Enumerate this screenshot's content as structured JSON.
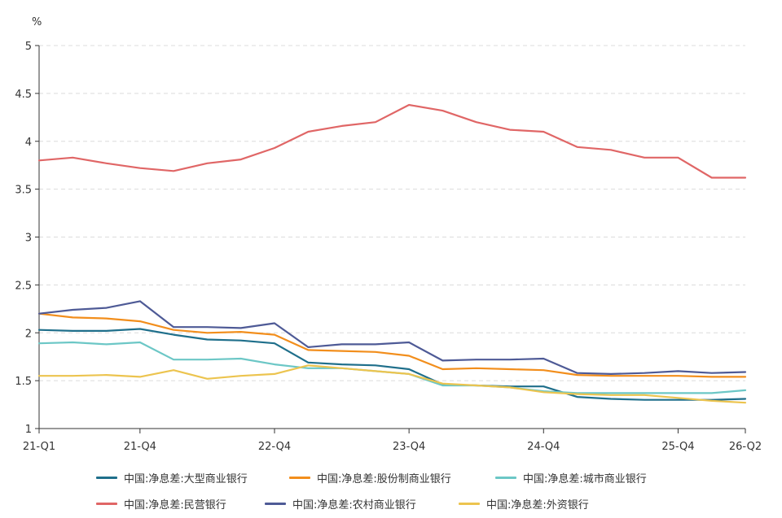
{
  "chart_data": {
    "type": "line",
    "unit": "%",
    "ylim": [
      1,
      5
    ],
    "y_ticks": [
      "1",
      "1.5",
      "2",
      "2.5",
      "3",
      "3.5",
      "4",
      "4.5",
      "5"
    ],
    "x_tick_labels": [
      "21-Q1",
      "21-Q4",
      "22-Q4",
      "23-Q4",
      "24-Q4",
      "25-Q4",
      "26-Q2"
    ],
    "grid": true,
    "legend_position": "bottom",
    "x": [
      "21-Q1",
      "21-Q2",
      "21-Q3",
      "21-Q4",
      "22-Q1",
      "22-Q2",
      "22-Q3",
      "22-Q4",
      "23-Q1",
      "23-Q2",
      "23-Q3",
      "23-Q4",
      "24-Q1",
      "24-Q2",
      "24-Q3",
      "24-Q4",
      "25-Q1",
      "25-Q2",
      "25-Q3",
      "25-Q4",
      "26-Q1",
      "26-Q2"
    ],
    "series": [
      {
        "name": "中国:净息差:大型商业银行",
        "color": "#1f6f8b",
        "values": [
          2.03,
          2.02,
          2.02,
          2.04,
          1.98,
          1.93,
          1.92,
          1.89,
          1.69,
          1.67,
          1.66,
          1.62,
          1.46,
          1.45,
          1.44,
          1.44,
          1.33,
          1.31,
          1.3,
          1.3,
          1.3,
          1.31
        ]
      },
      {
        "name": "中国:净息差:股份制商业银行",
        "color": "#f28e1c",
        "values": [
          2.2,
          2.16,
          2.15,
          2.12,
          2.03,
          2.0,
          2.01,
          1.98,
          1.82,
          1.81,
          1.8,
          1.76,
          1.62,
          1.63,
          1.62,
          1.61,
          1.56,
          1.55,
          1.55,
          1.55,
          1.54,
          1.54
        ]
      },
      {
        "name": "中国:净息差:城市商业银行",
        "color": "#6cc7c6",
        "values": [
          1.89,
          1.9,
          1.88,
          1.9,
          1.72,
          1.72,
          1.73,
          1.67,
          1.63,
          1.63,
          1.6,
          1.57,
          1.45,
          1.45,
          1.43,
          1.39,
          1.37,
          1.37,
          1.37,
          1.37,
          1.37,
          1.4
        ]
      },
      {
        "name": "中国:净息差:民营银行",
        "color": "#e06666",
        "values": [
          3.8,
          3.83,
          3.77,
          3.72,
          3.69,
          3.77,
          3.81,
          3.93,
          4.1,
          4.16,
          4.2,
          4.38,
          4.32,
          4.2,
          4.12,
          4.1,
          3.94,
          3.91,
          3.83,
          3.83,
          3.62,
          3.62
        ]
      },
      {
        "name": "中国:净息差:农村商业银行",
        "color": "#4e5a96",
        "values": [
          2.2,
          2.24,
          2.26,
          2.33,
          2.06,
          2.06,
          2.05,
          2.1,
          1.85,
          1.88,
          1.88,
          1.9,
          1.71,
          1.72,
          1.72,
          1.73,
          1.58,
          1.57,
          1.58,
          1.6,
          1.58,
          1.59
        ]
      },
      {
        "name": "中国:净息差:外资银行",
        "color": "#ecc44f",
        "values": [
          1.55,
          1.55,
          1.56,
          1.54,
          1.61,
          1.52,
          1.55,
          1.57,
          1.66,
          1.63,
          1.6,
          1.57,
          1.47,
          1.45,
          1.43,
          1.38,
          1.36,
          1.35,
          1.35,
          1.32,
          1.29,
          1.27
        ]
      }
    ]
  }
}
